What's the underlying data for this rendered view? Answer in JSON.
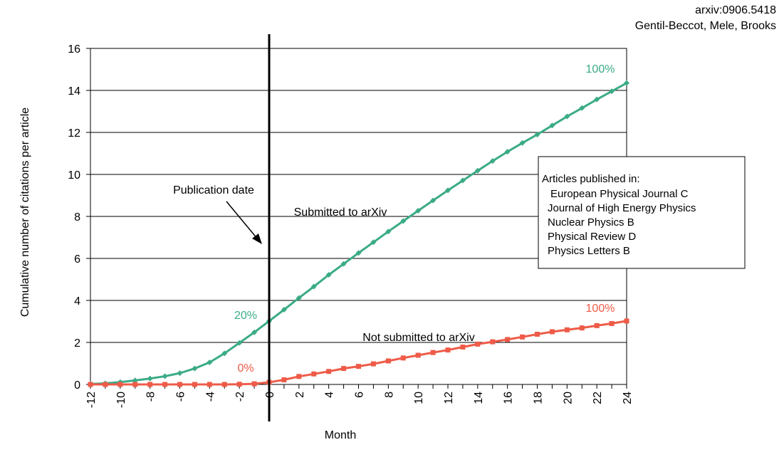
{
  "citation": {
    "line1": "arxiv:0906.5418",
    "line2": "Gentil-Beccot, Mele, Brooks"
  },
  "chart_data": {
    "type": "line",
    "xlabel": "Month",
    "ylabel": "Cumulative number of citations per article",
    "xlim": [
      -12,
      24
    ],
    "ylim": [
      0,
      16
    ],
    "x_ticks": [
      -12,
      -10,
      -8,
      -6,
      -4,
      -2,
      0,
      2,
      4,
      6,
      8,
      10,
      12,
      14,
      16,
      18,
      20,
      22,
      24
    ],
    "y_ticks": [
      0,
      2,
      4,
      6,
      8,
      10,
      12,
      14,
      16
    ],
    "grid": "horizontal",
    "x": [
      -12,
      -11,
      -10,
      -9,
      -8,
      -7,
      -6,
      -5,
      -4,
      -3,
      -2,
      -1,
      0,
      1,
      2,
      3,
      4,
      5,
      6,
      7,
      8,
      9,
      10,
      11,
      12,
      13,
      14,
      15,
      16,
      17,
      18,
      19,
      20,
      21,
      22,
      23,
      24
    ],
    "series": [
      {
        "name": "Submitted to arXiv",
        "color": "#3bab87",
        "marker": "diamond",
        "values": [
          0.02,
          0.05,
          0.11,
          0.19,
          0.28,
          0.39,
          0.54,
          0.76,
          1.05,
          1.48,
          1.98,
          2.48,
          3.02,
          3.56,
          4.12,
          4.66,
          5.22,
          5.74,
          6.26,
          6.77,
          7.28,
          7.78,
          8.27,
          8.76,
          9.24,
          9.71,
          10.18,
          10.64,
          11.08,
          11.5,
          11.9,
          12.33,
          12.76,
          13.16,
          13.57,
          13.96,
          14.35
        ]
      },
      {
        "name": "Not submitted to arXiv",
        "color": "#ee5b48",
        "marker": "square",
        "values": [
          0.0,
          0.0,
          0.0,
          0.0,
          0.0,
          0.0,
          0.0,
          0.0,
          0.0,
          0.0,
          0.01,
          0.03,
          0.1,
          0.22,
          0.38,
          0.5,
          0.62,
          0.76,
          0.86,
          0.98,
          1.12,
          1.26,
          1.39,
          1.52,
          1.64,
          1.78,
          1.92,
          2.03,
          2.14,
          2.26,
          2.39,
          2.51,
          2.6,
          2.69,
          2.8,
          2.9,
          3.02
        ]
      }
    ],
    "vertical_line_x": 0,
    "annotations": {
      "publication_date": "Publication date",
      "submitted_label": "Submitted to arXiv",
      "not_submitted_label": "Not submitted to arXiv",
      "green_20": "20%",
      "green_100": "100%",
      "red_0": "0%",
      "red_100": "100%"
    },
    "legend": {
      "placement": "right",
      "title": "Articles published in:",
      "items": [
        "European Physical Journal C",
        "Journal of High Energy Physics",
        "Nuclear Physics B",
        "Physical Review D",
        "Physics Letters B"
      ]
    }
  }
}
